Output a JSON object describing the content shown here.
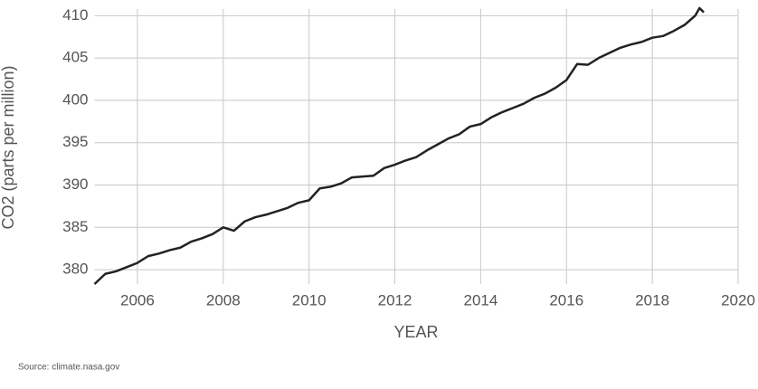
{
  "chart_data": {
    "type": "line",
    "x_label": "YEAR",
    "y_label": "CO2 (parts per million)",
    "source": "Source: climate.nasa.gov",
    "x": [
      2005.0,
      2005.25,
      2005.5,
      2005.75,
      2006.0,
      2006.25,
      2006.5,
      2006.75,
      2007.0,
      2007.25,
      2007.5,
      2007.75,
      2008.0,
      2008.25,
      2008.5,
      2008.75,
      2009.0,
      2009.25,
      2009.5,
      2009.75,
      2010.0,
      2010.25,
      2010.5,
      2010.75,
      2011.0,
      2011.25,
      2011.5,
      2011.75,
      2012.0,
      2012.25,
      2012.5,
      2012.75,
      2013.0,
      2013.25,
      2013.5,
      2013.75,
      2014.0,
      2014.25,
      2014.5,
      2014.75,
      2015.0,
      2015.25,
      2015.5,
      2015.75,
      2016.0,
      2016.25,
      2016.5,
      2016.75,
      2017.0,
      2017.25,
      2017.5,
      2017.75,
      2018.0,
      2018.25,
      2018.5,
      2018.75,
      2019.0,
      2019.1,
      2019.2
    ],
    "values": [
      378.3,
      379.5,
      379.8,
      380.3,
      380.8,
      381.6,
      381.9,
      382.3,
      382.6,
      383.3,
      383.7,
      384.2,
      385.0,
      384.6,
      385.7,
      386.2,
      386.5,
      386.9,
      387.3,
      387.9,
      388.2,
      389.6,
      389.8,
      390.2,
      390.9,
      391.0,
      391.1,
      392.0,
      392.4,
      392.9,
      393.3,
      394.1,
      394.8,
      395.5,
      396.0,
      396.9,
      397.2,
      398.0,
      398.6,
      399.1,
      399.6,
      400.3,
      400.8,
      401.5,
      402.4,
      404.3,
      404.2,
      405.0,
      405.6,
      406.2,
      406.6,
      406.9,
      407.4,
      407.6,
      408.2,
      408.9,
      410.0,
      410.9,
      410.4
    ],
    "color": "#222222",
    "xlim": [
      2005,
      2020
    ],
    "xticks": [
      2006,
      2008,
      2010,
      2012,
      2014,
      2016,
      2018,
      2020
    ],
    "ylim": [
      378.3,
      411
    ],
    "yticks": [
      380,
      385,
      390,
      395,
      400,
      405,
      410
    ],
    "grid": true
  }
}
